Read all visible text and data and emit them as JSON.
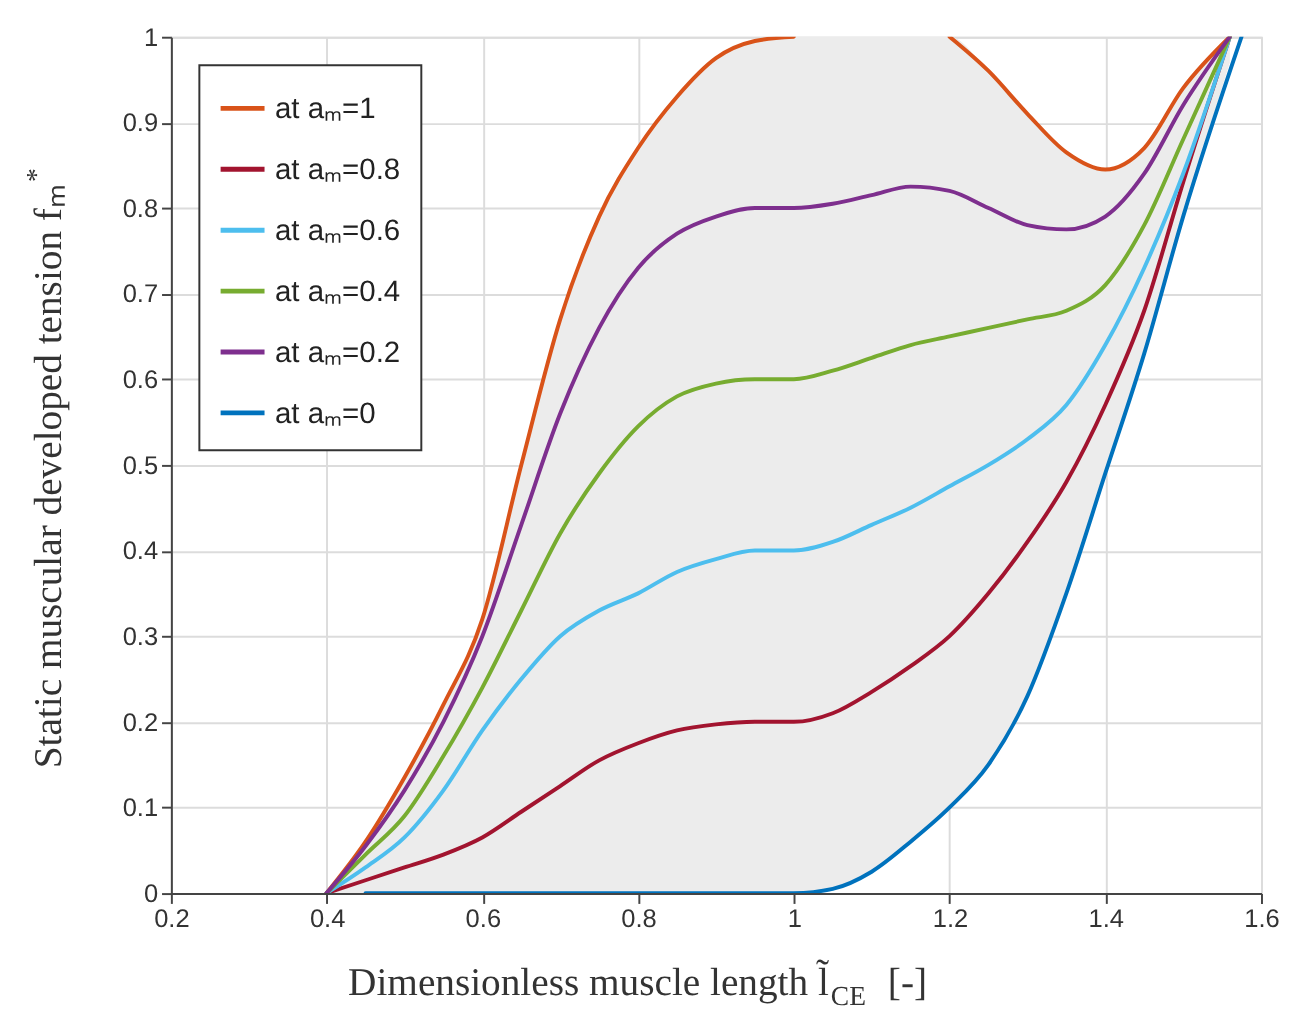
{
  "chart_data": {
    "type": "line",
    "xlabel": "Dimensionless muscle length l̃$_{CE}$ [-]",
    "ylabel": "Static muscular developed tension fₘ$^{*}$",
    "x": [
      0.4,
      0.45,
      0.5,
      0.55,
      0.6,
      0.65,
      0.7,
      0.75,
      0.8,
      0.85,
      0.9,
      0.95,
      1.0,
      1.05,
      1.1,
      1.15,
      1.2,
      1.25,
      1.3,
      1.35,
      1.4,
      1.45,
      1.5,
      1.56
    ],
    "series": [
      {
        "name": "at aₘ=1",
        "color": "#d95319",
        "values": [
          0,
          0.06,
          0.135,
          0.22,
          0.32,
          0.5,
          0.67,
          0.79,
          0.87,
          0.93,
          0.975,
          0.995,
          1.0,
          null,
          null,
          null,
          1.0,
          0.96,
          0.91,
          0.865,
          0.845,
          0.87,
          0.94,
          1.0
        ],
        "lower": [
          0,
          0,
          0,
          0,
          0,
          0,
          0,
          0,
          0,
          0,
          0,
          0,
          0,
          0.005,
          0.025,
          0.06,
          0.1,
          0.15,
          0.23,
          0.35,
          0.49,
          0.63,
          0.79,
          0.97
        ],
        "upper": [
          0,
          0.06,
          0.135,
          0.22,
          0.32,
          0.5,
          0.67,
          0.79,
          0.87,
          0.93,
          0.975,
          0.995,
          1.0,
          1.0,
          1.0,
          1.0,
          1.0,
          0.96,
          0.91,
          0.865,
          0.845,
          0.87,
          0.94,
          1.0
        ]
      },
      {
        "name": "at aₘ=0.8",
        "color": "#a2142f",
        "values": [
          0,
          0.015,
          0.03,
          0.045,
          0.065,
          0.095,
          0.125,
          0.155,
          0.175,
          0.19,
          0.197,
          0.2,
          0.2,
          0.21,
          0.235,
          0.265,
          0.3,
          0.35,
          0.41,
          0.48,
          0.57,
          0.68,
          0.83,
          1.0
        ]
      },
      {
        "name": "at aₘ=0.6",
        "color": "#4dbeee",
        "values": [
          0,
          0.03,
          0.065,
          0.12,
          0.19,
          0.25,
          0.3,
          0.33,
          0.35,
          0.375,
          0.39,
          0.4,
          0.4,
          0.41,
          0.43,
          0.45,
          0.475,
          0.5,
          0.53,
          0.57,
          0.64,
          0.73,
          0.84,
          1.0
        ]
      },
      {
        "name": "at aₘ=0.4",
        "color": "#77ac30",
        "values": [
          0,
          0.045,
          0.09,
          0.16,
          0.24,
          0.33,
          0.42,
          0.49,
          0.545,
          0.58,
          0.595,
          0.6,
          0.6,
          0.61,
          0.625,
          0.64,
          0.65,
          0.66,
          0.67,
          0.68,
          0.71,
          0.78,
          0.88,
          1.0
        ]
      },
      {
        "name": "at aₘ=0.2",
        "color": "#7e2f8e",
        "values": [
          0,
          0.055,
          0.12,
          0.2,
          0.3,
          0.43,
          0.56,
          0.66,
          0.73,
          0.77,
          0.79,
          0.8,
          0.8,
          0.805,
          0.815,
          0.825,
          0.82,
          0.8,
          0.78,
          0.775,
          0.79,
          0.84,
          0.92,
          1.0
        ]
      },
      {
        "name": "at aₘ=0",
        "color": "#0072bd",
        "x": [
          0.45,
          1.0,
          1.05,
          1.1,
          1.15,
          1.2,
          1.25,
          1.3,
          1.35,
          1.4,
          1.45,
          1.5,
          1.575
        ],
        "values": [
          0,
          0,
          0.005,
          0.025,
          0.06,
          0.1,
          0.15,
          0.23,
          0.35,
          0.49,
          0.63,
          0.79,
          1.0
        ]
      }
    ],
    "xlim": [
      0.2,
      1.6
    ],
    "xticks": [
      0.2,
      0.4,
      0.6,
      0.8,
      1,
      1.2,
      1.4,
      1.6
    ],
    "ylim": [
      0,
      1
    ],
    "yticks": [
      0,
      0.1,
      0.2,
      0.3,
      0.4,
      0.5,
      0.6,
      0.7,
      0.8,
      0.9,
      1
    ],
    "grid": true,
    "legend": "top left",
    "line_style": "solid",
    "marker": "none"
  }
}
